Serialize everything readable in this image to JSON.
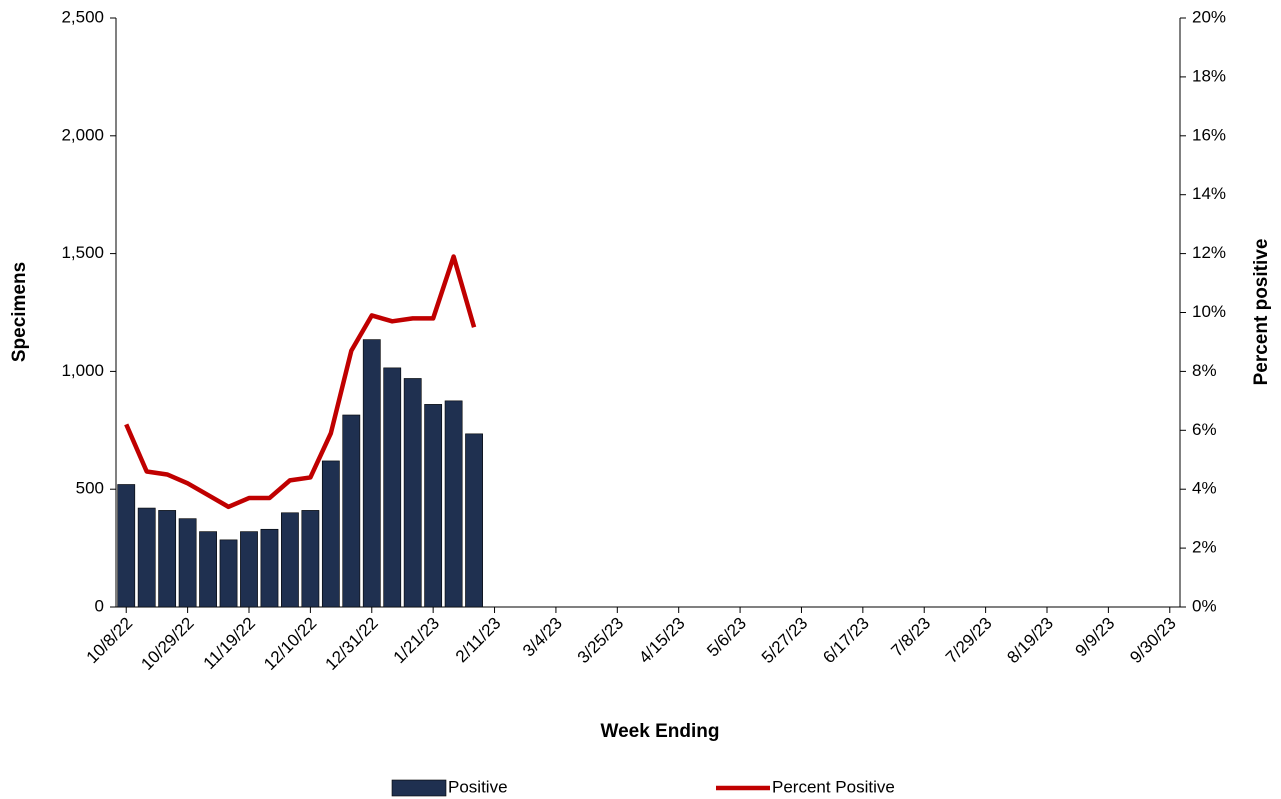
{
  "chart_data": {
    "type": "bar-line",
    "x_label": "Week Ending",
    "y_label": "Specimens",
    "y2_label": "Percent positive",
    "categories": [
      "10/8/22",
      null,
      null,
      "10/29/22",
      null,
      null,
      "11/19/22",
      null,
      null,
      "12/10/22",
      null,
      null,
      "12/31/22",
      null,
      null,
      "1/21/23",
      null,
      null,
      "2/11/23",
      null,
      null,
      "3/4/23",
      null,
      null,
      "3/25/23",
      null,
      null,
      "4/15/23",
      null,
      null,
      "5/6/23",
      null,
      null,
      "5/27/23",
      null,
      null,
      "6/17/23",
      null,
      null,
      "7/8/23",
      null,
      null,
      "7/29/23",
      null,
      null,
      "8/19/23",
      null,
      null,
      "9/9/23",
      null,
      null,
      "9/30/23"
    ],
    "series": [
      {
        "name": "Positive",
        "type": "bar",
        "color": "#1f3050",
        "values": [
          520,
          420,
          410,
          375,
          320,
          285,
          320,
          330,
          400,
          410,
          620,
          815,
          1135,
          1015,
          970,
          860,
          875,
          735,
          null,
          null,
          null,
          null,
          null,
          null,
          null,
          null,
          null,
          null,
          null,
          null,
          null,
          null,
          null,
          null,
          null,
          null,
          null,
          null,
          null,
          null,
          null,
          null,
          null,
          null,
          null,
          null,
          null,
          null,
          null,
          null,
          null,
          null
        ]
      },
      {
        "name": "Percent Positive",
        "type": "line",
        "axis": "y2",
        "color": "#c00000",
        "values": [
          6.2,
          4.6,
          4.5,
          4.2,
          3.8,
          3.4,
          3.7,
          3.7,
          4.3,
          4.4,
          5.9,
          8.7,
          9.9,
          9.7,
          9.8,
          9.8,
          11.9,
          9.5,
          null,
          null,
          null,
          null,
          null,
          null,
          null,
          null,
          null,
          null,
          null,
          null,
          null,
          null,
          null,
          null,
          null,
          null,
          null,
          null,
          null,
          null,
          null,
          null,
          null,
          null,
          null,
          null,
          null,
          null,
          null,
          null,
          null,
          null
        ]
      }
    ],
    "ylim": [
      0,
      2500
    ],
    "yticks": [
      0,
      500,
      {
        "value": 1000,
        "label": "1,000"
      },
      {
        "value": 1500,
        "label": "1,500"
      },
      {
        "value": 2000,
        "label": "2,000"
      },
      {
        "value": 2500,
        "label": "2,500"
      }
    ],
    "y2lim": [
      0,
      20
    ],
    "y2ticks": [
      {
        "value": 0,
        "label": "0%"
      },
      {
        "value": 2,
        "label": "2%"
      },
      {
        "value": 4,
        "label": "4%"
      },
      {
        "value": 6,
        "label": "6%"
      },
      {
        "value": 8,
        "label": "8%"
      },
      {
        "value": 10,
        "label": "10%"
      },
      {
        "value": 12,
        "label": "12%"
      },
      {
        "value": 14,
        "label": "14%"
      },
      {
        "value": 16,
        "label": "16%"
      },
      {
        "value": 18,
        "label": "18%"
      },
      {
        "value": 20,
        "label": "20%"
      }
    ]
  }
}
